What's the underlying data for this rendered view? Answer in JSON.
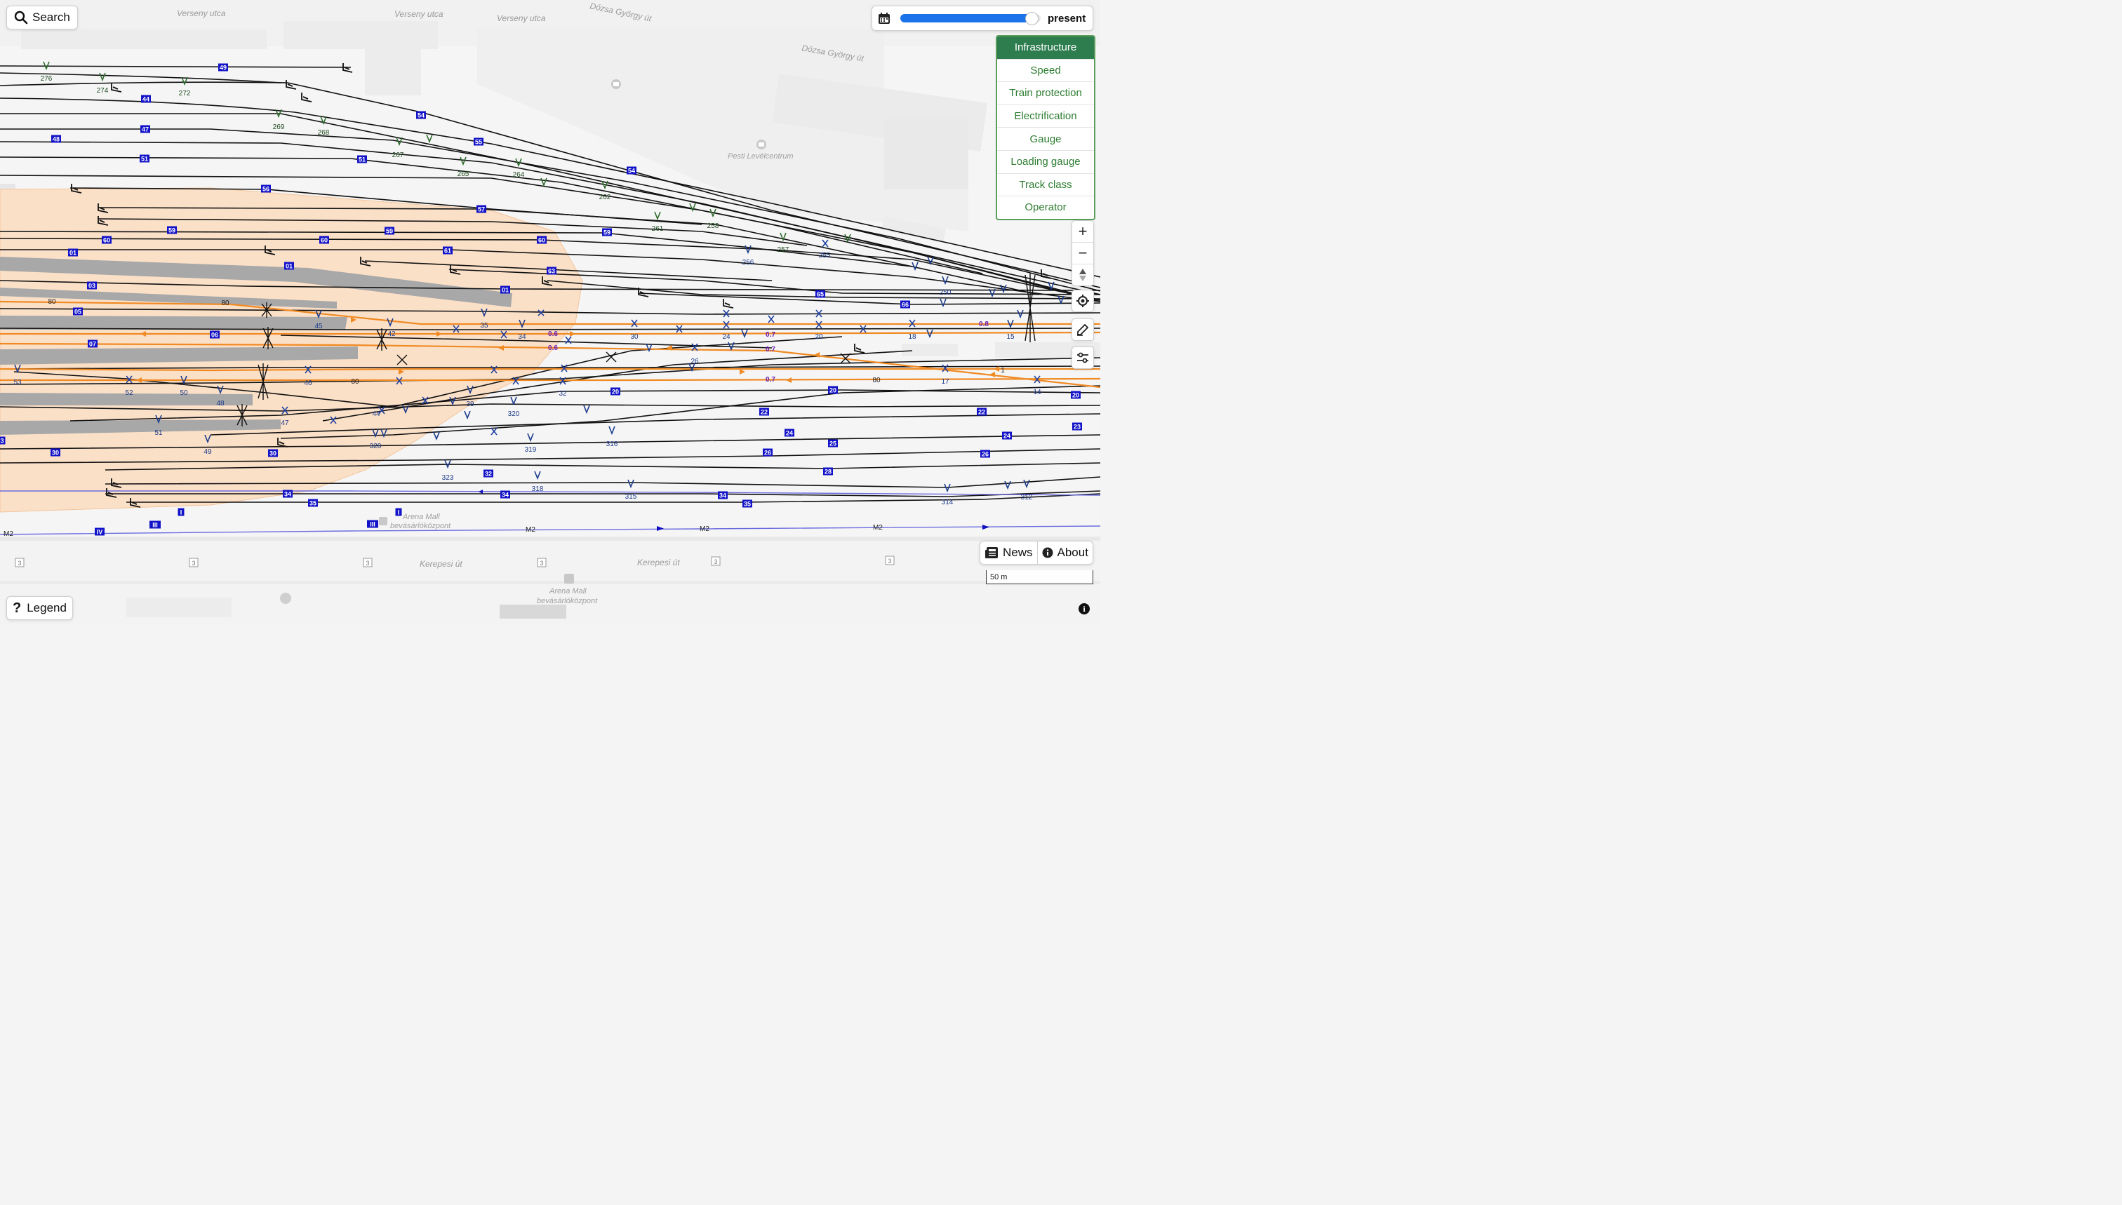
{
  "search": {
    "label": "Search"
  },
  "date": {
    "label": "present",
    "fraction": 0.93
  },
  "styles": {
    "items": [
      "Infrastructure",
      "Speed",
      "Train protection",
      "Electrification",
      "Gauge",
      "Loading gauge",
      "Track class",
      "Operator"
    ],
    "active": "Infrastructure"
  },
  "controls": {
    "zoom_in": "+",
    "zoom_out": "−"
  },
  "footer": {
    "news_label": "News",
    "about_label": "About",
    "scale_label": "50 m",
    "legend_label": "Legend"
  },
  "map": {
    "streets": [
      "Verseny utca",
      "Verseny utca",
      "Verseny utca",
      "Dózsa György út",
      "Dózsa György út",
      "Kerepesi út",
      "Kerepesi út"
    ],
    "pois": [
      "Pesti Levélcentrum",
      "Arena Mall",
      "bevásárlóközpont",
      "Arena Mall",
      "bevásárlóközpont"
    ],
    "road_shields": [
      "3",
      "3",
      "3",
      "3",
      "3",
      "3"
    ],
    "metro_line": "M2",
    "metro_labels": [
      "M2",
      "M2",
      "M2"
    ],
    "metro_start": "M2",
    "track_numbers": [
      "49",
      "44",
      "47",
      "48",
      "51",
      "51",
      "54",
      "55",
      "54",
      "56",
      "57",
      "59",
      "59",
      "59",
      "60",
      "60",
      "60",
      "01",
      "61",
      "01",
      "63",
      "03",
      "01",
      "65",
      "66",
      "05",
      "06",
      "07",
      "20",
      "20",
      "20",
      "22",
      "22",
      "23",
      "24",
      "24",
      "25",
      "26",
      "26",
      "28",
      "30",
      "30",
      "32",
      "34",
      "34",
      "34",
      "35",
      "35",
      "I",
      "I",
      "III",
      "III",
      "IV",
      "3"
    ],
    "switch_labels": [
      "276",
      "274",
      "272",
      "269",
      "268",
      "267",
      "265",
      "264",
      "262",
      "261",
      "258",
      "257",
      "256",
      "255",
      "250",
      "45",
      "42",
      "35",
      "34",
      "30",
      "24",
      "20",
      "18",
      "15",
      "26",
      "17",
      "14",
      "53",
      "52",
      "50",
      "48",
      "46",
      "44",
      "39",
      "32",
      "320",
      "47",
      "51",
      "49",
      "328",
      "319",
      "316",
      "323",
      "318",
      "315",
      "314",
      "312"
    ],
    "speed_labels": [
      "80",
      "80",
      "80",
      "80",
      "80",
      "1"
    ],
    "speed_signs": [
      "0.6",
      "0.6",
      "0.7",
      "0.7",
      "0.7",
      "0.8"
    ]
  }
}
